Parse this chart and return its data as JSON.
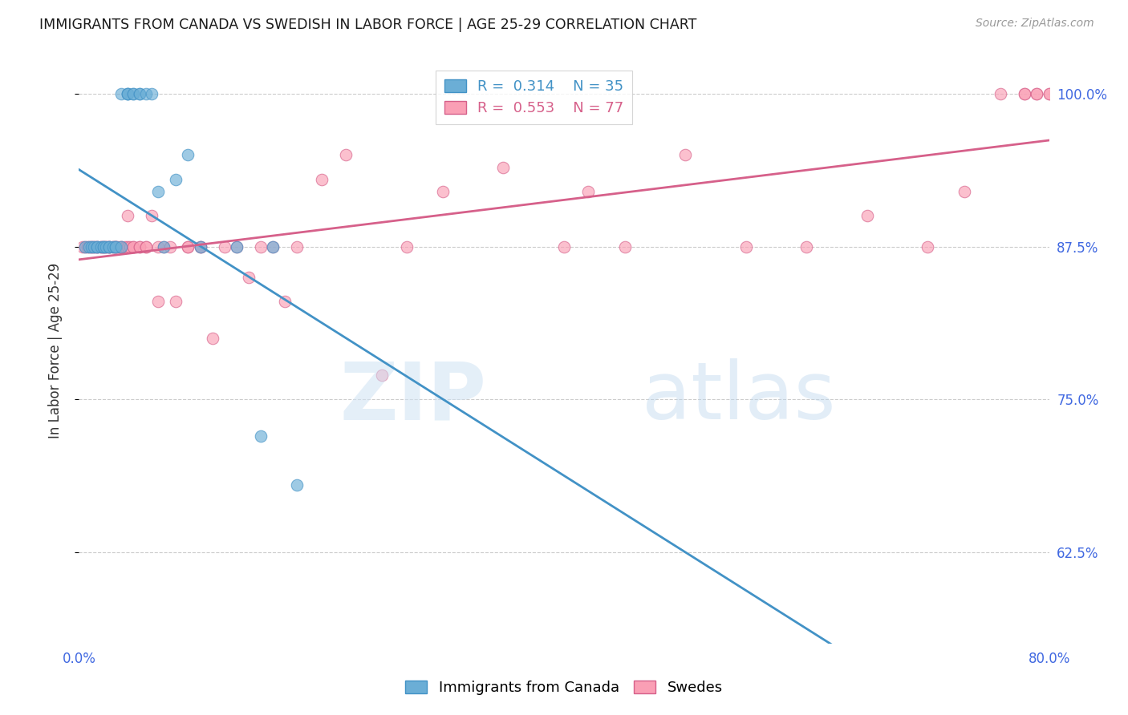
{
  "title": "IMMIGRANTS FROM CANADA VS SWEDISH IN LABOR FORCE | AGE 25-29 CORRELATION CHART",
  "source": "Source: ZipAtlas.com",
  "ylabel": "In Labor Force | Age 25-29",
  "legend_label1": "Immigrants from Canada",
  "legend_label2": "Swedes",
  "r1": 0.314,
  "n1": 35,
  "r2": 0.553,
  "n2": 77,
  "color_blue": "#6baed6",
  "color_pink": "#fa9fb5",
  "color_blue_line": "#4292c6",
  "color_pink_line": "#d6608a",
  "color_axis_labels": "#4169e1",
  "background_color": "#ffffff",
  "x_min": 0.0,
  "x_max": 0.8,
  "y_min": 0.55,
  "y_max": 1.03,
  "ytick_vals": [
    1.0,
    0.875,
    0.75,
    0.625
  ],
  "ytick_labels": [
    "100.0%",
    "87.5%",
    "75.0%",
    "62.5%"
  ],
  "blue_x": [
    0.005,
    0.008,
    0.01,
    0.012,
    0.015,
    0.015,
    0.018,
    0.02,
    0.02,
    0.022,
    0.025,
    0.025,
    0.028,
    0.03,
    0.03,
    0.035,
    0.035,
    0.04,
    0.04,
    0.04,
    0.045,
    0.045,
    0.05,
    0.05,
    0.055,
    0.06,
    0.065,
    0.07,
    0.08,
    0.09,
    0.1,
    0.13,
    0.15,
    0.16,
    0.18
  ],
  "blue_y": [
    0.875,
    0.875,
    0.875,
    0.875,
    0.875,
    0.875,
    0.875,
    0.875,
    0.875,
    0.875,
    0.875,
    0.875,
    0.875,
    0.875,
    0.875,
    0.875,
    1.0,
    1.0,
    1.0,
    1.0,
    1.0,
    1.0,
    1.0,
    1.0,
    1.0,
    1.0,
    0.92,
    0.875,
    0.93,
    0.95,
    0.875,
    0.875,
    0.72,
    0.875,
    0.68
  ],
  "pink_x": [
    0.003,
    0.005,
    0.007,
    0.008,
    0.01,
    0.01,
    0.012,
    0.013,
    0.015,
    0.015,
    0.018,
    0.018,
    0.02,
    0.02,
    0.022,
    0.022,
    0.025,
    0.025,
    0.025,
    0.028,
    0.028,
    0.03,
    0.03,
    0.03,
    0.032,
    0.035,
    0.035,
    0.038,
    0.04,
    0.04,
    0.042,
    0.045,
    0.045,
    0.05,
    0.05,
    0.055,
    0.055,
    0.06,
    0.065,
    0.065,
    0.07,
    0.075,
    0.08,
    0.09,
    0.09,
    0.1,
    0.1,
    0.11,
    0.12,
    0.13,
    0.14,
    0.15,
    0.16,
    0.17,
    0.18,
    0.2,
    0.22,
    0.25,
    0.27,
    0.3,
    0.35,
    0.4,
    0.42,
    0.45,
    0.5,
    0.55,
    0.6,
    0.65,
    0.7,
    0.73,
    0.76,
    0.78,
    0.78,
    0.79,
    0.79,
    0.8,
    0.8
  ],
  "pink_y": [
    0.875,
    0.875,
    0.875,
    0.875,
    0.875,
    0.875,
    0.875,
    0.875,
    0.875,
    0.875,
    0.875,
    0.875,
    0.875,
    0.875,
    0.875,
    0.875,
    0.875,
    0.875,
    0.875,
    0.875,
    0.875,
    0.875,
    0.875,
    0.875,
    0.875,
    0.875,
    0.875,
    0.875,
    0.9,
    0.875,
    0.875,
    0.875,
    0.875,
    0.875,
    0.875,
    0.875,
    0.875,
    0.9,
    0.83,
    0.875,
    0.875,
    0.875,
    0.83,
    0.875,
    0.875,
    0.875,
    0.875,
    0.8,
    0.875,
    0.875,
    0.85,
    0.875,
    0.875,
    0.83,
    0.875,
    0.93,
    0.95,
    0.77,
    0.875,
    0.92,
    0.94,
    0.875,
    0.92,
    0.875,
    0.95,
    0.875,
    0.875,
    0.9,
    0.875,
    0.92,
    1.0,
    1.0,
    1.0,
    1.0,
    1.0,
    1.0,
    1.0
  ]
}
